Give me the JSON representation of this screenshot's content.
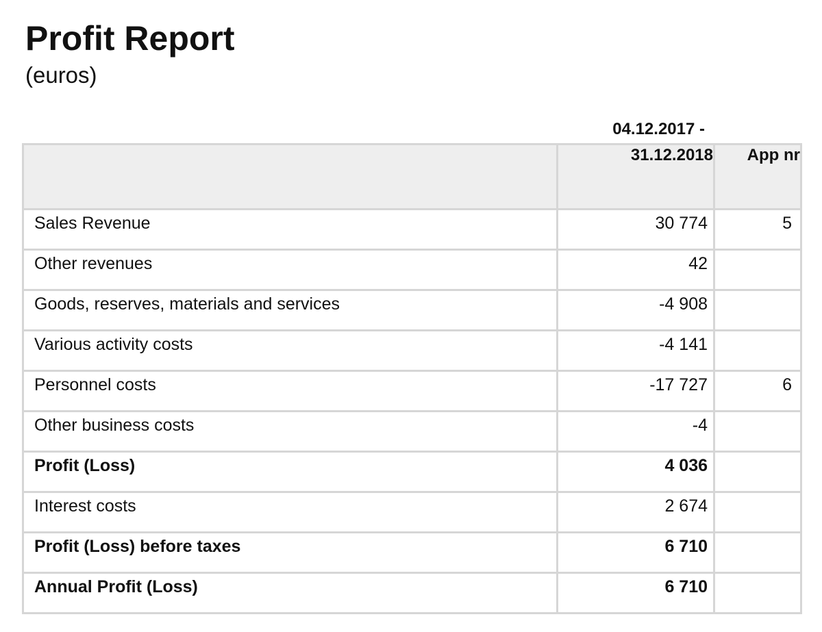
{
  "report": {
    "title": "Profit Report",
    "subtitle": "(euros)"
  },
  "table": {
    "header": {
      "period_start": "04.12.2017 -",
      "period_end": "31.12.2018",
      "app_nr": "App nr"
    },
    "rows": [
      {
        "label": "Sales Revenue",
        "value": "30 774",
        "app": "5"
      },
      {
        "label": "Other revenues",
        "value": "42",
        "app": ""
      },
      {
        "label": "Goods, reserves, materials and services",
        "value": "-4 908",
        "app": ""
      },
      {
        "label": "Various activity costs",
        "value": "-4 141",
        "app": ""
      },
      {
        "label": "Personnel costs",
        "value": "-17 727",
        "app": "6"
      },
      {
        "label": "Other business costs",
        "value": "-4",
        "app": ""
      },
      {
        "label": "Profit (Loss)",
        "value": "4 036",
        "app": ""
      },
      {
        "label": "Interest costs",
        "value": "2 674",
        "app": ""
      },
      {
        "label": "Profit (Loss) before taxes",
        "value": "6 710",
        "app": ""
      },
      {
        "label": "Annual Profit (Loss)",
        "value": "6 710",
        "app": ""
      }
    ]
  }
}
